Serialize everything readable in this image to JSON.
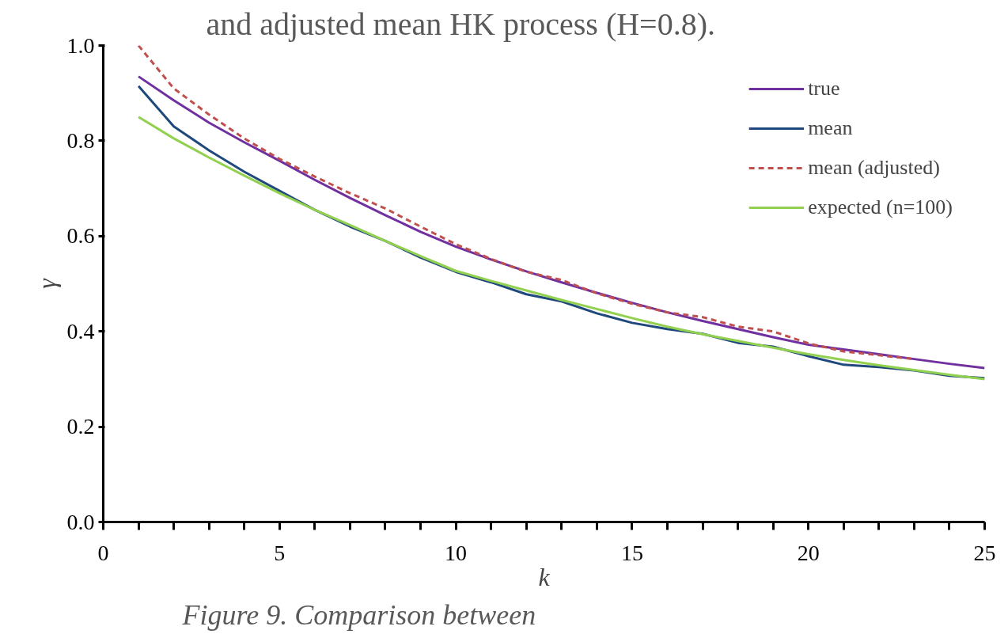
{
  "chart_data": {
    "type": "line",
    "title": "and adjusted mean HK process (H=0.8).",
    "xlabel": "k",
    "ylabel": "γ",
    "annotations": [
      "Figure 9. Comparison between"
    ],
    "x": [
      1,
      2,
      3,
      4,
      5,
      6,
      7,
      8,
      9,
      10,
      11,
      12,
      13,
      14,
      15,
      16,
      17,
      18,
      19,
      20,
      21,
      22,
      23,
      24,
      25
    ],
    "series": [
      {
        "name": "true",
        "color": "#7030a0",
        "line_style": "solid",
        "values": [
          0.935,
          0.885,
          0.838,
          0.797,
          0.758,
          0.718,
          0.68,
          0.644,
          0.609,
          0.578,
          0.551,
          0.526,
          0.503,
          0.481,
          0.46,
          0.44,
          0.422,
          0.405,
          0.388,
          0.372,
          0.362,
          0.352,
          0.342,
          0.332,
          0.323
        ]
      },
      {
        "name": "mean",
        "color": "#1f497d",
        "line_style": "solid",
        "values": [
          0.915,
          0.83,
          0.78,
          0.735,
          0.695,
          0.655,
          0.62,
          0.59,
          0.555,
          0.525,
          0.503,
          0.478,
          0.463,
          0.438,
          0.418,
          0.405,
          0.395,
          0.376,
          0.368,
          0.348,
          0.33,
          0.325,
          0.318,
          0.307,
          0.302
        ]
      },
      {
        "name": "mean (adjusted)",
        "color": "#c0504d",
        "line_style": "dashed",
        "values": [
          1.0,
          0.91,
          0.855,
          0.805,
          0.762,
          0.725,
          0.69,
          0.658,
          0.62,
          0.583,
          0.552,
          0.525,
          0.508,
          0.48,
          0.458,
          0.44,
          0.43,
          0.41,
          0.4,
          0.375,
          0.358,
          0.35,
          0.342,
          null,
          null
        ]
      },
      {
        "name": "expected (n=100)",
        "color": "#92d050",
        "line_style": "solid",
        "values": [
          0.85,
          0.805,
          0.765,
          0.727,
          0.69,
          0.655,
          0.623,
          0.59,
          0.558,
          0.527,
          0.506,
          0.486,
          0.466,
          0.447,
          0.428,
          0.41,
          0.394,
          0.38,
          0.366,
          0.352,
          0.34,
          0.329,
          0.319,
          0.309,
          0.3
        ]
      }
    ],
    "xlim": [
      0,
      25
    ],
    "ylim": [
      0,
      1.0
    ],
    "xticks": [
      0,
      5,
      10,
      15,
      20,
      25
    ],
    "yticks": [
      {
        "value": 0,
        "label": "0.0"
      },
      {
        "value": 0.2,
        "label": "0.2"
      },
      {
        "value": 0.4,
        "label": "0.4"
      },
      {
        "value": 0.6,
        "label": "0.6"
      },
      {
        "value": 0.8,
        "label": "0.8"
      },
      {
        "value": 1.0,
        "label": "1.0"
      }
    ],
    "legend": "top right",
    "grid": false
  }
}
